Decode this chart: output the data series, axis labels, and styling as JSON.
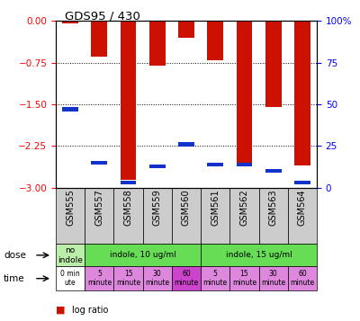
{
  "title": "GDS95 / 430",
  "samples": [
    "GSM555",
    "GSM557",
    "GSM558",
    "GSM559",
    "GSM560",
    "GSM561",
    "GSM562",
    "GSM563",
    "GSM564"
  ],
  "log_ratios": [
    -0.05,
    -0.65,
    -2.85,
    -0.8,
    -0.3,
    -0.7,
    -2.55,
    -1.55,
    -2.6
  ],
  "percentile_ranks": [
    47,
    15,
    3,
    13,
    26,
    14,
    14,
    10,
    3
  ],
  "ylim_left": [
    -3,
    0
  ],
  "ylim_right": [
    0,
    100
  ],
  "yticks_left": [
    0,
    -0.75,
    -1.5,
    -2.25,
    -3
  ],
  "yticks_right": [
    0,
    25,
    50,
    75,
    100
  ],
  "bar_color": "#cc1100",
  "blue_color": "#1133cc",
  "dose_spans": [
    [
      0,
      1,
      "no\nindole",
      "#bbeeaa"
    ],
    [
      1,
      5,
      "indole, 10 ug/ml",
      "#66dd55"
    ],
    [
      5,
      9,
      "indole, 15 ug/ml",
      "#66dd55"
    ]
  ],
  "time_colors": [
    "#ffffff",
    "#dd88dd",
    "#dd88dd",
    "#dd88dd",
    "#cc44cc",
    "#dd88dd",
    "#dd88dd",
    "#dd88dd",
    "#dd88dd"
  ],
  "time_texts": [
    "0 min\nute",
    "5\nminute",
    "15\nminute",
    "30\nminute",
    "60\nminute",
    "5\nminute",
    "15\nminute",
    "30\nminute",
    "60\nminute"
  ],
  "sample_bg": "#cccccc"
}
